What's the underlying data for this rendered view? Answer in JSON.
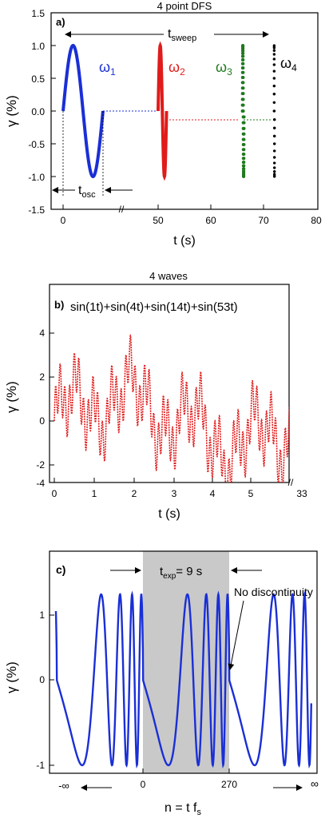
{
  "chart_data": [
    {
      "id": "a",
      "type": "scatter",
      "panel_label": "a)",
      "title": "4 point DFS",
      "xlabel": "t (s)",
      "ylabel": "γ (%)",
      "xlim": [
        -5,
        80
      ],
      "ylim": [
        -1.5,
        1.5
      ],
      "x_ticks": [
        "0",
        "50",
        "60",
        "70",
        "80"
      ],
      "y_ticks": [
        "1.5",
        "1.0",
        "0.5",
        "0.0",
        "-0.5",
        "-1.0",
        "-1.5"
      ],
      "axis_break": "//",
      "annotations": {
        "t_sweep": "t",
        "t_sweep_sub": "sweep",
        "t_osc": "t",
        "t_osc_sub": "osc"
      },
      "series": [
        {
          "name": "ω",
          "sub": "1",
          "color": "#1a2fd6",
          "amplitude": 1.0,
          "cycles": 1,
          "t_start": 0,
          "t_end": 15
        },
        {
          "name": "ω",
          "sub": "2",
          "color": "#e01b1b",
          "amplitude": 1.0,
          "cycles": 1,
          "t_start": 50,
          "t_end": 51.6
        },
        {
          "name": "ω",
          "sub": "3",
          "color": "#1e7a1e",
          "amplitude": 1.0,
          "cycles": 1,
          "t_start": 66,
          "t_end": 66.3
        },
        {
          "name": "ω",
          "sub": "4",
          "color": "#000000",
          "amplitude": 1.0,
          "cycles": 1,
          "t_start": 72,
          "t_end": 72.1
        }
      ]
    },
    {
      "id": "b",
      "type": "line",
      "panel_label": "b)",
      "title": "4 waves",
      "xlabel": "t (s)",
      "ylabel": "γ (%)",
      "xlim": [
        0,
        6.4
      ],
      "ylim": [
        -4,
        5
      ],
      "x_ticks": [
        "0",
        "1",
        "2",
        "3",
        "4",
        "5",
        "33"
      ],
      "y_ticks": [
        "4",
        "2",
        "0",
        "-2",
        "-4"
      ],
      "axis_break": "//",
      "formula": "sin(1t)+sin(4t)+sin(14t)+sin(53t)",
      "color": "#e01b1b",
      "frequencies": [
        1,
        4,
        14,
        53
      ]
    },
    {
      "id": "c",
      "type": "line",
      "panel_label": "c)",
      "xlabel": "n = t f",
      "xlabel_sub": "s",
      "ylabel": "γ (%)",
      "ylim": [
        -1,
        1
      ],
      "x_ticks": [
        "-∞",
        "0",
        "270",
        "∞"
      ],
      "y_ticks": [
        "1",
        "0",
        "-1"
      ],
      "color": "#1a2fd6",
      "shaded_region": [
        0,
        270
      ],
      "annotations": {
        "t_exp": "t",
        "t_exp_sub": "exp",
        "t_exp_value": "= 9 s",
        "no_discontinuity": "No discontinuity"
      }
    }
  ]
}
